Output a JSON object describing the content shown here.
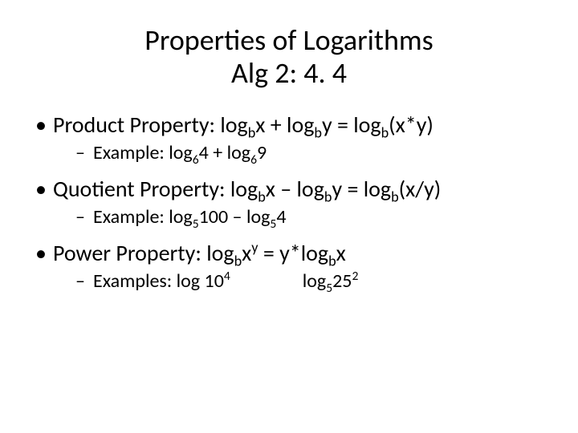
{
  "background_color": "#ffffff",
  "text_color": "#000000",
  "title": {
    "line1": "Properties of Logarithms",
    "line2": "Alg 2:  4. 4",
    "fontsize": 36
  },
  "bullets": [
    {
      "label": "Product Property:  ",
      "formula_parts": [
        "log",
        "b",
        "x + log",
        "b",
        "y = log",
        "b",
        "(x*y)"
      ],
      "example_label": "Example: ",
      "example_parts": [
        "log",
        "6",
        "4 + log",
        "6",
        "9"
      ]
    },
    {
      "label": "Quotient Property:  ",
      "formula_parts": [
        "log",
        "b",
        "x – log",
        "b",
        "y = log",
        "b",
        "(x/y)"
      ],
      "example_label": "Example:  ",
      "example_parts": [
        "log",
        "5",
        "100 – log",
        "5",
        "4"
      ]
    },
    {
      "label": "Power Property: ",
      "formula_parts": [
        "log",
        "b",
        "x",
        "y",
        " = y*log",
        "b",
        "x"
      ],
      "example_label": "Examples:  ",
      "example1_parts": [
        "log 10",
        "4"
      ],
      "example2_parts": [
        "log",
        "5",
        "25",
        "2"
      ]
    }
  ],
  "body_fontsize_level1": 28,
  "body_fontsize_level2": 24
}
